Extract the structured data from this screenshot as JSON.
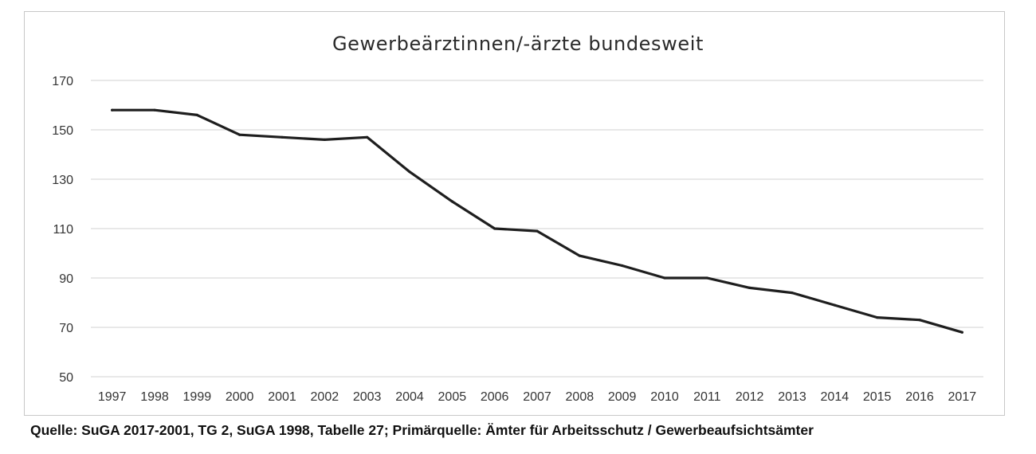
{
  "chart_data": {
    "type": "line",
    "title": "Gewerbeärztinnen/-ärzte bundesweit",
    "xlabel": "",
    "ylabel": "",
    "categories": [
      "1997",
      "1998",
      "1999",
      "2000",
      "2001",
      "2002",
      "2003",
      "2004",
      "2005",
      "2006",
      "2007",
      "2008",
      "2009",
      "2010",
      "2011",
      "2012",
      "2013",
      "2014",
      "2015",
      "2016",
      "2017"
    ],
    "series": [
      {
        "values": [
          158,
          158,
          156,
          148,
          147,
          146,
          147,
          133,
          121,
          110,
          109,
          99,
          95,
          90,
          90,
          86,
          84,
          79,
          74,
          73,
          68
        ]
      }
    ],
    "ylim": [
      50,
      170
    ],
    "yticks": [
      "170",
      "150",
      "130",
      "110",
      "90",
      "70",
      "50"
    ],
    "grid": true,
    "legend": "none",
    "line_color": "#1e1e1e",
    "grid_color": "#d9d9d9"
  },
  "source_note": "Quelle: SuGA 2017-2001, TG 2, SuGA 1998, Tabelle 27; Primärquelle: Ämter für Arbeitsschutz / Gewerbeaufsichtsämter"
}
